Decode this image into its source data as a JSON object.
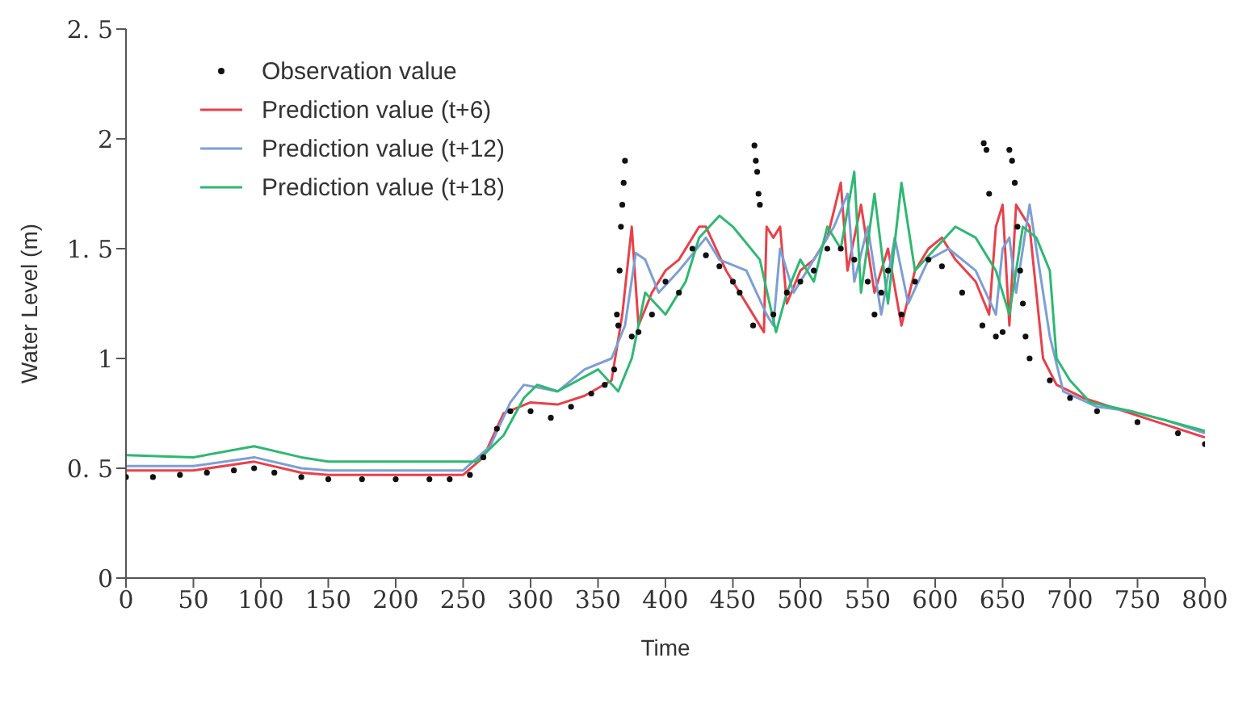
{
  "chart_data": {
    "type": "line",
    "xlabel": "Time",
    "ylabel": "Water Level (m)",
    "xlim": [
      0,
      800
    ],
    "ylim": [
      0,
      2.5
    ],
    "xticks": [
      0,
      50,
      100,
      150,
      200,
      250,
      300,
      350,
      400,
      450,
      500,
      550,
      600,
      650,
      700,
      750,
      800
    ],
    "yticks": [
      0,
      {
        "value": 0.5,
        "label": "0. 5"
      },
      1,
      {
        "value": 1.5,
        "label": "1. 5"
      },
      2,
      {
        "value": 2.5,
        "label": "2. 5"
      }
    ],
    "grid": false,
    "legend": "top left",
    "line_style": "solid",
    "series": [
      {
        "name": "Observation value",
        "type": "scatter",
        "color": "#111111",
        "x": [
          0,
          20,
          40,
          60,
          80,
          95,
          110,
          130,
          150,
          175,
          200,
          225,
          240,
          255,
          265,
          275,
          285,
          300,
          315,
          330,
          345,
          355,
          362,
          364,
          365,
          366,
          367,
          368,
          369,
          370,
          375,
          380,
          390,
          400,
          410,
          420,
          430,
          440,
          450,
          455,
          465,
          466,
          467,
          468,
          469,
          470,
          480,
          490,
          500,
          510,
          520,
          530,
          540,
          550,
          555,
          560,
          565,
          575,
          585,
          595,
          605,
          620,
          635,
          636,
          638,
          640,
          645,
          650,
          655,
          657,
          659,
          661,
          663,
          665,
          667,
          670,
          685,
          700,
          720,
          750,
          780,
          800
        ],
        "values": [
          0.46,
          0.46,
          0.47,
          0.48,
          0.49,
          0.5,
          0.48,
          0.46,
          0.45,
          0.45,
          0.45,
          0.45,
          0.45,
          0.47,
          0.55,
          0.68,
          0.76,
          0.76,
          0.73,
          0.78,
          0.84,
          0.88,
          0.95,
          1.2,
          1.15,
          1.4,
          1.6,
          1.7,
          1.8,
          1.9,
          1.1,
          1.12,
          1.2,
          1.35,
          1.3,
          1.5,
          1.47,
          1.42,
          1.35,
          1.3,
          1.15,
          1.97,
          1.9,
          1.85,
          1.75,
          1.7,
          1.2,
          1.3,
          1.35,
          1.4,
          1.5,
          1.5,
          1.45,
          1.35,
          1.2,
          1.3,
          1.4,
          1.2,
          1.35,
          1.45,
          1.42,
          1.3,
          1.15,
          1.98,
          1.95,
          1.75,
          1.1,
          1.12,
          1.95,
          1.9,
          1.8,
          1.6,
          1.4,
          1.25,
          1.1,
          1.0,
          0.9,
          0.82,
          0.76,
          0.71,
          0.66,
          0.61
        ]
      },
      {
        "name": "Prediction value (t+6)",
        "color": "#e8414a",
        "x": [
          0,
          50,
          95,
          130,
          150,
          250,
          265,
          280,
          300,
          320,
          340,
          360,
          368,
          375,
          380,
          390,
          400,
          410,
          425,
          430,
          445,
          465,
          473,
          475,
          480,
          485,
          490,
          500,
          510,
          520,
          530,
          535,
          545,
          555,
          565,
          575,
          585,
          595,
          605,
          615,
          630,
          640,
          645,
          650,
          655,
          660,
          670,
          680,
          690,
          710,
          740,
          770,
          800
        ],
        "values": [
          0.49,
          0.49,
          0.53,
          0.48,
          0.47,
          0.47,
          0.55,
          0.75,
          0.8,
          0.79,
          0.83,
          0.9,
          1.2,
          1.6,
          1.15,
          1.3,
          1.4,
          1.45,
          1.6,
          1.6,
          1.4,
          1.2,
          1.12,
          1.6,
          1.55,
          1.6,
          1.25,
          1.4,
          1.45,
          1.55,
          1.8,
          1.4,
          1.7,
          1.3,
          1.5,
          1.15,
          1.4,
          1.5,
          1.55,
          1.45,
          1.35,
          1.2,
          1.6,
          1.7,
          1.15,
          1.7,
          1.6,
          1.0,
          0.88,
          0.82,
          0.76,
          0.7,
          0.64
        ]
      },
      {
        "name": "Prediction value (t+12)",
        "color": "#7c9fd4",
        "x": [
          0,
          50,
          95,
          130,
          150,
          250,
          270,
          285,
          295,
          320,
          340,
          360,
          370,
          378,
          385,
          395,
          410,
          430,
          440,
          460,
          475,
          480,
          485,
          495,
          510,
          525,
          535,
          540,
          550,
          560,
          570,
          580,
          595,
          610,
          630,
          645,
          650,
          655,
          660,
          670,
          685,
          695,
          720,
          745,
          770,
          800
        ],
        "values": [
          0.51,
          0.51,
          0.55,
          0.5,
          0.49,
          0.49,
          0.6,
          0.8,
          0.88,
          0.85,
          0.95,
          1.0,
          1.15,
          1.48,
          1.45,
          1.3,
          1.4,
          1.55,
          1.45,
          1.4,
          1.2,
          1.15,
          1.5,
          1.3,
          1.45,
          1.6,
          1.75,
          1.35,
          1.6,
          1.2,
          1.55,
          1.25,
          1.45,
          1.5,
          1.4,
          1.2,
          1.5,
          1.55,
          1.3,
          1.7,
          1.1,
          0.85,
          0.78,
          0.76,
          0.72,
          0.66
        ]
      },
      {
        "name": "Prediction value (t+18)",
        "color": "#2eb872",
        "x": [
          0,
          50,
          95,
          130,
          150,
          260,
          280,
          295,
          305,
          320,
          350,
          365,
          375,
          385,
          400,
          415,
          425,
          440,
          450,
          470,
          482,
          490,
          500,
          510,
          520,
          530,
          540,
          545,
          555,
          565,
          575,
          585,
          600,
          615,
          630,
          645,
          655,
          665,
          675,
          685,
          690,
          700,
          715,
          745,
          770,
          800
        ],
        "values": [
          0.56,
          0.55,
          0.6,
          0.55,
          0.53,
          0.53,
          0.65,
          0.82,
          0.88,
          0.85,
          0.95,
          0.85,
          1.0,
          1.3,
          1.2,
          1.35,
          1.55,
          1.65,
          1.6,
          1.45,
          1.12,
          1.3,
          1.45,
          1.35,
          1.6,
          1.5,
          1.85,
          1.3,
          1.75,
          1.25,
          1.8,
          1.4,
          1.5,
          1.6,
          1.55,
          1.4,
          1.2,
          1.6,
          1.55,
          1.4,
          1.0,
          0.9,
          0.8,
          0.76,
          0.72,
          0.67
        ]
      }
    ]
  }
}
